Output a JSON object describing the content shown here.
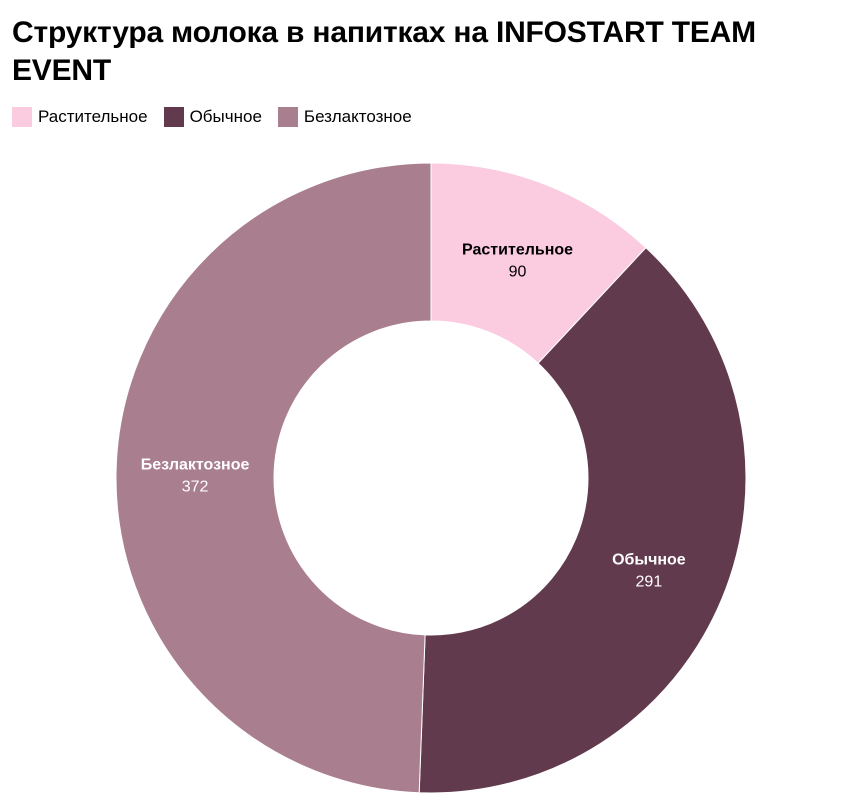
{
  "title": "Структура молока в напитках на INFOSTART TEAM EVENT",
  "legend": [
    {
      "label": "Растительное",
      "color": "#fbcbe0"
    },
    {
      "label": "Обычное",
      "color": "#623a4d"
    },
    {
      "label": "Безлактозное",
      "color": "#a97e8e"
    }
  ],
  "chart_data": {
    "type": "pie",
    "donut": true,
    "title": "Структура молока в напитках на INFOSTART TEAM EVENT",
    "legend_position": "top-left",
    "categories": [
      "Растительное",
      "Обычное",
      "Безлактозное"
    ],
    "values": [
      90,
      291,
      372
    ],
    "colors": [
      "#fbcbe0",
      "#623a4d",
      "#a97e8e"
    ],
    "label_colors": [
      "#000000",
      "#ffffff",
      "#ffffff"
    ]
  }
}
